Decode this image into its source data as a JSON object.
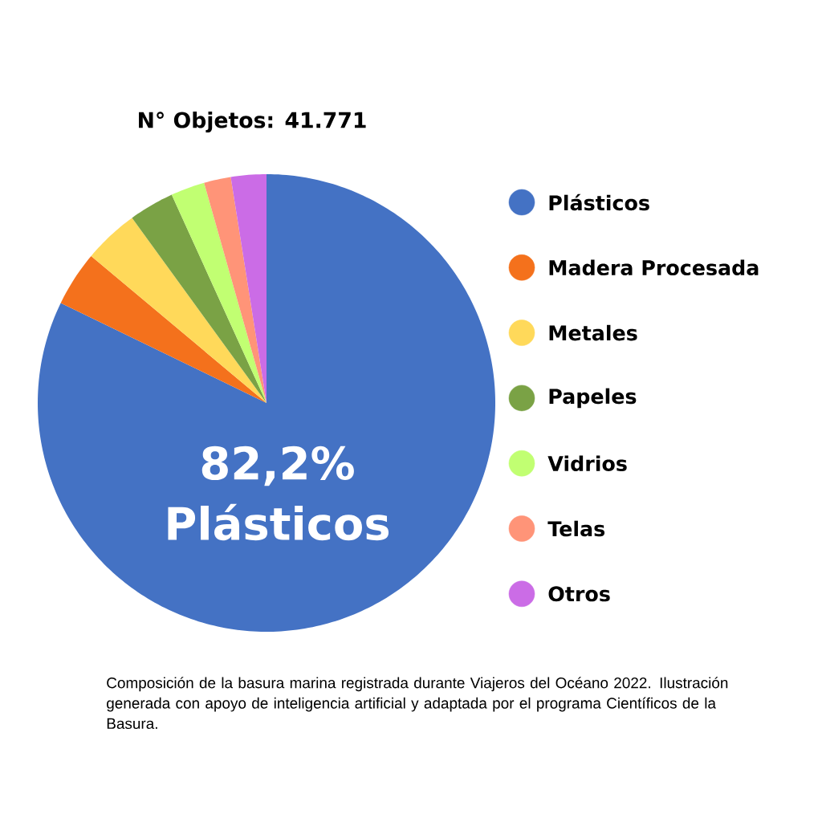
{
  "chart_data": {
    "type": "pie",
    "title": "N° Objetos: 41.771",
    "categories": [
      "Plásticos",
      "Madera Procesada",
      "Metales",
      "Papeles",
      "Vidrios",
      "Telas",
      "Otros"
    ],
    "values": [
      82.2,
      3.9,
      3.9,
      3.2,
      2.4,
      1.9,
      2.5
    ],
    "colors": [
      "#4472c4",
      "#f4711c",
      "#ffd95a",
      "#7aa245",
      "#c1ff72",
      "#ff9478",
      "#cb6ce6"
    ],
    "value_labels": [
      "82,2%",
      null,
      null,
      null,
      null,
      null,
      null
    ],
    "legend": "right",
    "annotations": [
      "Plásticos",
      "Composición de la basura marina registrada durante Viajeros del Océano 2022. Ilustración generada con apoyo de inteligencia artificial y adaptada por el programa Científicos de la Basura."
    ]
  }
}
